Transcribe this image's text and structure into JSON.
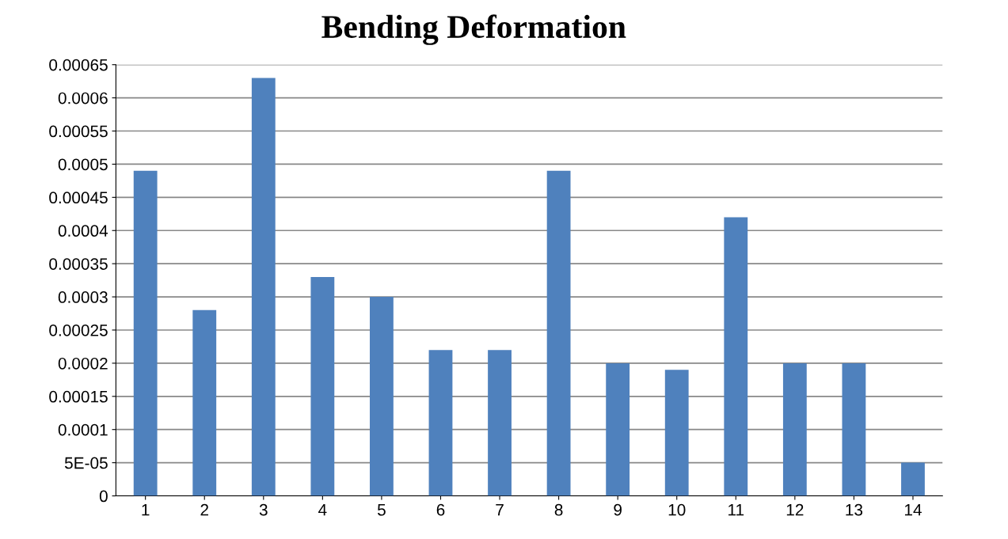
{
  "chart_data": {
    "type": "bar",
    "title": "Bending Deformation",
    "categories": [
      "1",
      "2",
      "3",
      "4",
      "5",
      "6",
      "7",
      "8",
      "9",
      "10",
      "11",
      "12",
      "13",
      "14"
    ],
    "values": [
      0.00049,
      0.00028,
      0.00063,
      0.00033,
      0.0003,
      0.00022,
      0.00022,
      0.00049,
      0.0002,
      0.00019,
      0.00042,
      0.0002,
      0.0002,
      5e-05
    ],
    "color": "#4f81bd",
    "ylim": [
      0,
      0.00065
    ],
    "yticks": [
      {
        "value": 0,
        "label": "0"
      },
      {
        "value": 5e-05,
        "label": "5E-05"
      },
      {
        "value": 0.0001,
        "label": "0.0001"
      },
      {
        "value": 0.00015,
        "label": "0.00015"
      },
      {
        "value": 0.0002,
        "label": "0.0002"
      },
      {
        "value": 0.00025,
        "label": "0.00025"
      },
      {
        "value": 0.0003,
        "label": "0.0003"
      },
      {
        "value": 0.00035,
        "label": "0.00035"
      },
      {
        "value": 0.0004,
        "label": "0.0004"
      },
      {
        "value": 0.00045,
        "label": "0.00045"
      },
      {
        "value": 0.0005,
        "label": "0.0005"
      },
      {
        "value": 0.00055,
        "label": "0.00055"
      },
      {
        "value": 0.0006,
        "label": "0.0006"
      },
      {
        "value": 0.00065,
        "label": "0.00065"
      }
    ],
    "grid": "y"
  }
}
